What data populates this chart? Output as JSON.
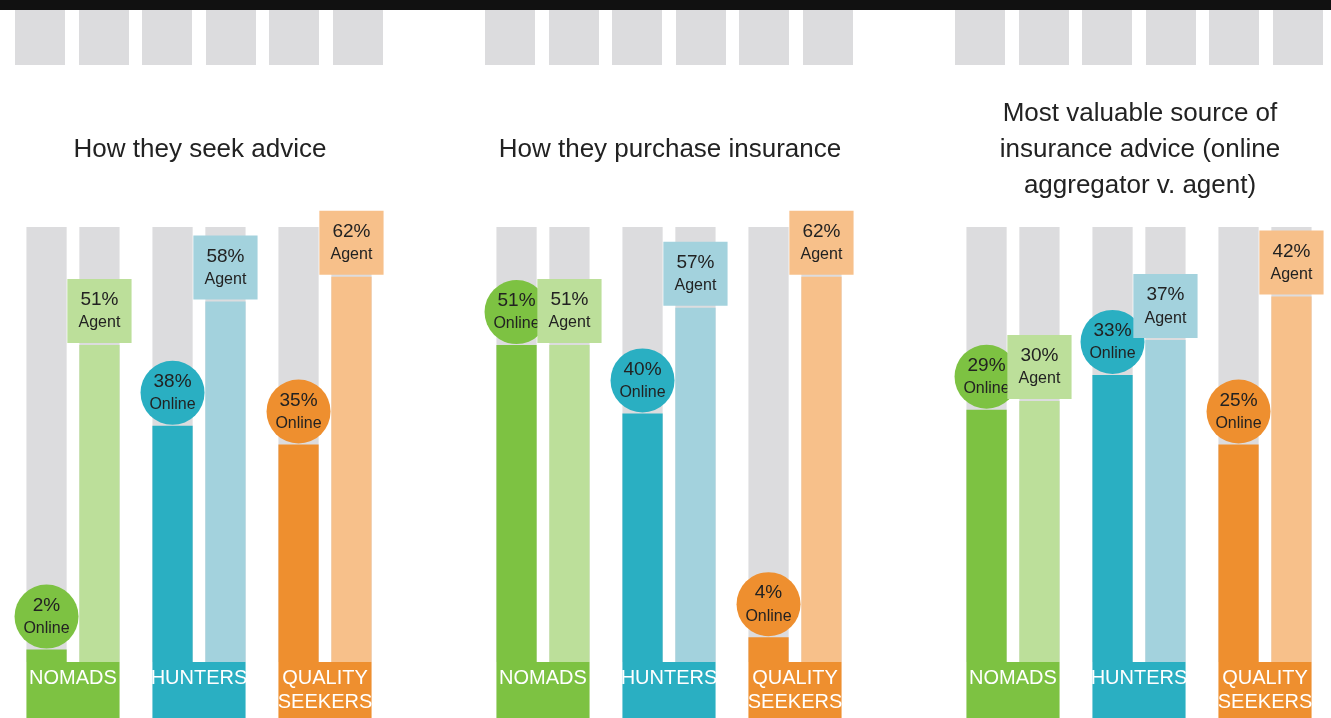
{
  "chart_data": [
    {
      "type": "bar",
      "title": "How they seek advice",
      "categories": [
        "NOMADS",
        "HUNTERS",
        "QUALITY SEEKERS"
      ],
      "legend": false,
      "grid": false,
      "tick_labels": "x",
      "series": [
        {
          "name": "Online",
          "colors": [
            "#7dc242",
            "#2aafc2",
            "#ee8f2f"
          ],
          "values": [
            2,
            38,
            35
          ],
          "value_labels": [
            "2%",
            "38%",
            "35%"
          ]
        },
        {
          "name": "Agent",
          "colors": [
            "#bcdf9a",
            "#a3d2dd",
            "#f7c08a"
          ],
          "values": [
            51,
            58,
            62
          ],
          "value_labels": [
            "51%",
            "58%",
            "62%"
          ]
        }
      ]
    },
    {
      "type": "bar",
      "title": "How they purchase insurance",
      "categories": [
        "NOMADS",
        "HUNTERS",
        "QUALITY SEEKERS"
      ],
      "legend": false,
      "grid": false,
      "tick_labels": "x",
      "series": [
        {
          "name": "Online",
          "colors": [
            "#7dc242",
            "#2aafc2",
            "#ee8f2f"
          ],
          "values": [
            51,
            40,
            4
          ],
          "value_labels": [
            "51%",
            "40%",
            "4%"
          ]
        },
        {
          "name": "Agent",
          "colors": [
            "#bcdf9a",
            "#a3d2dd",
            "#f7c08a"
          ],
          "values": [
            51,
            57,
            62
          ],
          "value_labels": [
            "51%",
            "57%",
            "62%"
          ]
        }
      ]
    },
    {
      "type": "bar",
      "title": "Most valuable source of insurance advice (online aggregator v. agent)",
      "categories": [
        "NOMADS",
        "HUNTERS",
        "QUALITY SEEKERS"
      ],
      "legend": false,
      "grid": false,
      "tick_labels": "x",
      "series": [
        {
          "name": "Online",
          "colors": [
            "#7dc242",
            "#2aafc2",
            "#ee8f2f"
          ],
          "values": [
            29,
            33,
            25
          ],
          "value_labels": [
            "29%",
            "33%",
            "25%"
          ]
        },
        {
          "name": "Agent",
          "colors": [
            "#bcdf9a",
            "#a3d2dd",
            "#f7c08a"
          ],
          "values": [
            30,
            37,
            42
          ],
          "value_labels": [
            "30%",
            "37%",
            "42%"
          ]
        }
      ]
    }
  ]
}
